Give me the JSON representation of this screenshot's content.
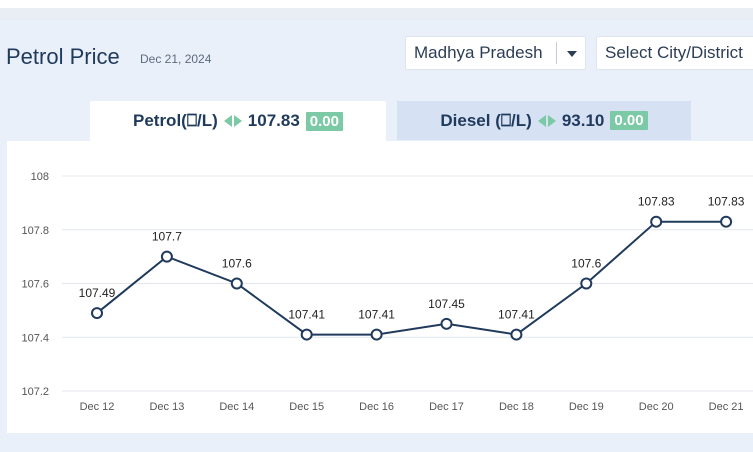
{
  "header": {
    "title": "Petrol Price",
    "date": "Dec 21, 2024",
    "state_select": {
      "value": "Madhya Pradesh"
    },
    "city_select": {
      "value": "Select City/District"
    }
  },
  "tabs": [
    {
      "label": "Petrol(⎕/L)",
      "price": "107.83",
      "change": "0.00",
      "active": true
    },
    {
      "label": "Diesel (⎕/L)",
      "price": "93.10",
      "change": "0.00",
      "active": false
    }
  ],
  "colors": {
    "accent": "#1f3a5c",
    "change_badge": "#7cc9a5",
    "line": "#1f3a5c"
  },
  "icons": {
    "state_dropdown": "chevron-down-icon",
    "price_arrows": "left-right-arrows-icon"
  },
  "chart_data": {
    "type": "line",
    "x": [
      "Dec 12",
      "Dec 13",
      "Dec 14",
      "Dec 15",
      "Dec 16",
      "Dec 17",
      "Dec 18",
      "Dec 19",
      "Dec 20",
      "Dec 21"
    ],
    "series": [
      {
        "values": [
          107.49,
          107.7,
          107.6,
          107.41,
          107.41,
          107.45,
          107.41,
          107.6,
          107.83,
          107.83
        ]
      }
    ],
    "point_labels": [
      "107.49",
      "107.7",
      "107.6",
      "107.41",
      "107.41",
      "107.45",
      "107.41",
      "107.6",
      "107.83",
      "107.83"
    ],
    "ylim": [
      107.2,
      108
    ],
    "yticks": [
      "108",
      "107.8",
      "107.6",
      "107.4",
      "107.2"
    ],
    "grid": true,
    "title": "",
    "xlabel": "",
    "ylabel": ""
  }
}
